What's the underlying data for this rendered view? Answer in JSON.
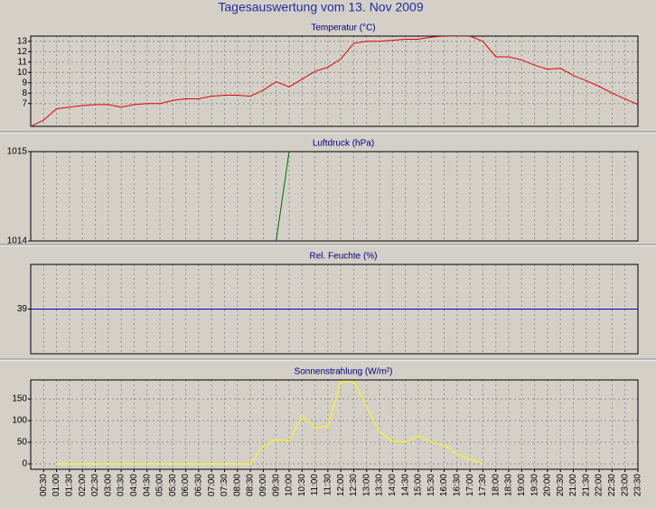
{
  "title": "Tagesauswertung vom 13. Nov 2009",
  "x_axis": {
    "xlim": [
      0,
      23.5
    ],
    "xticks": [
      {
        "value": 0.5,
        "label": "00:30"
      },
      {
        "value": 1,
        "label": "01:00"
      },
      {
        "value": 1.5,
        "label": "01:30"
      },
      {
        "value": 2,
        "label": "02:00"
      },
      {
        "value": 2.5,
        "label": "02:30"
      },
      {
        "value": 3,
        "label": "03:00"
      },
      {
        "value": 3.5,
        "label": "03:30"
      },
      {
        "value": 4,
        "label": "04:00"
      },
      {
        "value": 4.5,
        "label": "04:30"
      },
      {
        "value": 5,
        "label": "05:00"
      },
      {
        "value": 5.5,
        "label": "05:30"
      },
      {
        "value": 6,
        "label": "06:00"
      },
      {
        "value": 6.5,
        "label": "06:30"
      },
      {
        "value": 7,
        "label": "07:00"
      },
      {
        "value": 7.5,
        "label": "07:30"
      },
      {
        "value": 8,
        "label": "08:00"
      },
      {
        "value": 8.5,
        "label": "08:30"
      },
      {
        "value": 9,
        "label": "09:00"
      },
      {
        "value": 9.5,
        "label": "09:30"
      },
      {
        "value": 10,
        "label": "10:00"
      },
      {
        "value": 10.5,
        "label": "10:30"
      },
      {
        "value": 11,
        "label": "11:00"
      },
      {
        "value": 11.5,
        "label": "11:30"
      },
      {
        "value": 12,
        "label": "12:00"
      },
      {
        "value": 12.5,
        "label": "12:30"
      },
      {
        "value": 13,
        "label": "13:00"
      },
      {
        "value": 13.5,
        "label": "13:30"
      },
      {
        "value": 14,
        "label": "14:00"
      },
      {
        "value": 14.5,
        "label": "14:30"
      },
      {
        "value": 15,
        "label": "15:00"
      },
      {
        "value": 15.5,
        "label": "15:30"
      },
      {
        "value": 16,
        "label": "16:00"
      },
      {
        "value": 16.5,
        "label": "16:30"
      },
      {
        "value": 17,
        "label": "17:00"
      },
      {
        "value": 17.5,
        "label": "17:30"
      },
      {
        "value": 18,
        "label": "18:00"
      },
      {
        "value": 18.5,
        "label": "18:30"
      },
      {
        "value": 19,
        "label": "19:00"
      },
      {
        "value": 19.5,
        "label": "19:30"
      },
      {
        "value": 20,
        "label": "20:00"
      },
      {
        "value": 20.5,
        "label": "20:30"
      },
      {
        "value": 21,
        "label": "21:00"
      },
      {
        "value": 21.5,
        "label": "21:30"
      },
      {
        "value": 22,
        "label": "22:00"
      },
      {
        "value": 22.5,
        "label": "22:30"
      },
      {
        "value": 23,
        "label": "23:00"
      },
      {
        "value": 23.5,
        "label": "23:30"
      }
    ]
  },
  "chart_data": [
    {
      "type": "line",
      "title": "Temperatur (°C)",
      "color": "#e00000",
      "grid": true,
      "ylim": [
        4.8,
        13.5
      ],
      "yticks": [
        7,
        8,
        9,
        10,
        11,
        12,
        13
      ],
      "x": [
        0,
        0.5,
        1,
        1.5,
        2,
        2.5,
        3,
        3.5,
        4,
        4.5,
        5,
        5.5,
        6,
        6.5,
        7,
        7.5,
        8,
        8.5,
        9,
        9.5,
        10,
        10.5,
        11,
        11.5,
        12,
        12.5,
        13,
        13.5,
        14,
        14.5,
        15,
        15.5,
        16,
        16.5,
        17,
        17.5,
        18,
        18.5,
        19,
        19.5,
        20,
        20.5,
        21,
        21.5,
        22,
        22.5,
        23,
        23.5
      ],
      "values": [
        4.8,
        5.4,
        6.5,
        6.65,
        6.8,
        6.9,
        6.9,
        6.65,
        6.9,
        7.0,
        7.0,
        7.3,
        7.45,
        7.45,
        7.7,
        7.8,
        7.8,
        7.7,
        8.3,
        9.1,
        8.6,
        9.35,
        10.1,
        10.5,
        11.3,
        12.8,
        13.0,
        13.0,
        13.1,
        13.2,
        13.2,
        13.4,
        13.5,
        13.5,
        13.5,
        13.0,
        11.5,
        11.5,
        11.2,
        10.7,
        10.3,
        10.4,
        9.7,
        9.2,
        8.65,
        8.0,
        7.45,
        6.9
      ]
    },
    {
      "type": "line",
      "title": "Luftdruck (hPa)",
      "color": "#007000",
      "grid": true,
      "ylim": [
        1014,
        1015
      ],
      "yticks": [
        1014,
        1015
      ],
      "x": [
        9.5,
        10
      ],
      "values": [
        1014,
        1015
      ]
    },
    {
      "type": "line",
      "title": "Rel. Feuchte (%)",
      "color": "#0000c0",
      "grid": true,
      "ylim": [
        38,
        40
      ],
      "yticks": [
        39
      ],
      "x": [
        0,
        23.5
      ],
      "values": [
        39,
        39
      ]
    },
    {
      "type": "line",
      "title": "Sonnenstrahlung (W/m²)",
      "color": "#ffff00",
      "grid": true,
      "ylim": [
        -12.5,
        194
      ],
      "yticks": [
        0,
        50,
        100,
        150
      ],
      "x": [
        1,
        1.5,
        2,
        2.5,
        3,
        3.5,
        4,
        4.5,
        5,
        5.5,
        6,
        6.5,
        7,
        7.5,
        8,
        8.5,
        9,
        9.5,
        10,
        10.5,
        11,
        11.5,
        12,
        12.5,
        13,
        13.5,
        14,
        14.5,
        15,
        15.5,
        16,
        16.5,
        17,
        17.5
      ],
      "values": [
        0,
        0,
        0,
        0,
        0,
        0,
        0,
        0,
        0,
        0,
        0,
        0,
        0,
        0,
        0,
        0,
        42,
        56,
        52,
        112,
        83,
        87,
        190,
        190,
        131,
        75,
        52,
        50,
        65,
        50,
        44,
        23,
        12,
        0
      ]
    }
  ]
}
